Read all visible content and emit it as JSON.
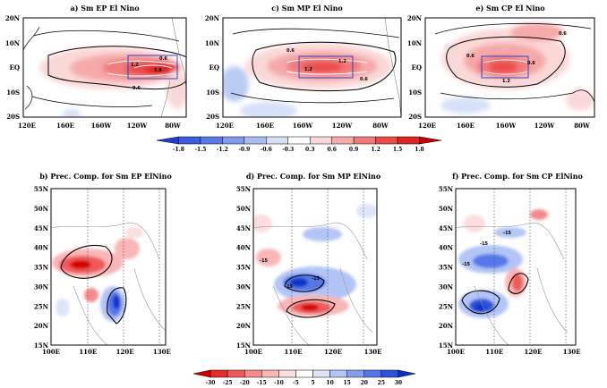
{
  "chart_data": [
    {
      "type": "heatmap",
      "title": "a) Sm EP El Nino",
      "x_ticks": [
        "120E",
        "160E",
        "160W",
        "120W",
        "80W"
      ],
      "y_ticks": [
        "20N",
        "10N",
        "EQ",
        "10S",
        "20S"
      ],
      "contour_labels": [
        "0.6",
        "1.2",
        "1.8",
        "0.6"
      ],
      "box": {
        "lon": [
          150,
          90
        ],
        "lat": [
          5,
          -5
        ]
      }
    },
    {
      "type": "heatmap",
      "title": "c) Sm MP El Nino",
      "x_ticks": [
        "120E",
        "160E",
        "160W",
        "120W",
        "80W"
      ],
      "y_ticks": [
        "20N",
        "10N",
        "EQ",
        "10S",
        "20S"
      ],
      "contour_labels": [
        "0.6",
        "1.2",
        "1.2",
        "0.6"
      ],
      "box": {
        "lon": [
          160,
          120
        ],
        "lat": [
          5,
          -5
        ]
      }
    },
    {
      "type": "heatmap",
      "title": "e) Sm CP El Nino",
      "x_ticks": [
        "120E",
        "160E",
        "160W",
        "120W",
        "80W"
      ],
      "y_ticks": [
        "20N",
        "10N",
        "EQ",
        "10S",
        "20S"
      ],
      "contour_labels": [
        "0.6",
        "0.6",
        "1.2",
        "0.6"
      ],
      "box": {
        "lon": [
          170,
          140
        ],
        "lat": [
          5,
          -5
        ]
      }
    },
    {
      "type": "heatmap",
      "title": "b) Prec. Comp. for Sm EP ElNino",
      "x_ticks": [
        "100E",
        "110E",
        "120E",
        "130E"
      ],
      "y_ticks": [
        "55N",
        "50N",
        "45N",
        "40N",
        "35N",
        "30N",
        "25N",
        "20N",
        "15N"
      ],
      "contour_labels": []
    },
    {
      "type": "heatmap",
      "title": "d) Prec. Comp. for Sm MP ElNino",
      "x_ticks": [
        "100E",
        "110E",
        "120E",
        "130E"
      ],
      "y_ticks": [
        "55N",
        "50N",
        "45N",
        "40N",
        "35N",
        "30N",
        "25N",
        "20N",
        "15N"
      ],
      "contour_labels": [
        "-15",
        "-15",
        "-15"
      ]
    },
    {
      "type": "heatmap",
      "title": "f) Prec. Comp. for Sm CP ElNino",
      "x_ticks": [
        "100E",
        "110E",
        "120E",
        "130E"
      ],
      "y_ticks": [
        "55N",
        "50N",
        "45N",
        "40N",
        "35N",
        "30N",
        "25N",
        "20N",
        "15N"
      ],
      "contour_labels": [
        "-15",
        "-15",
        "-15"
      ]
    }
  ],
  "sst_colorbar": {
    "labels": [
      "-1.8",
      "-1.5",
      "-1.2",
      "-0.9",
      "-0.6",
      "-0.3",
      "0.3",
      "0.6",
      "0.9",
      "1.2",
      "1.5",
      "1.8"
    ],
    "colors": [
      "#1f3fd4",
      "#3a5ce0",
      "#5a7ae8",
      "#7f9bee",
      "#a9bdf3",
      "#d6e0f8",
      "#ffffff",
      "#fbd8d8",
      "#f6a9a9",
      "#f17a7a",
      "#ea4b4b",
      "#e02222",
      "#cc0000"
    ]
  },
  "prec_colorbar": {
    "labels": [
      "-30",
      "-25",
      "-20",
      "-15",
      "-10",
      "-5",
      "5",
      "10",
      "15",
      "20",
      "25",
      "30"
    ],
    "colors": [
      "#d60000",
      "#e52b2b",
      "#ee5a5a",
      "#f58a8a",
      "#f9b6b6",
      "#fcdede",
      "#ffffff",
      "#dde5fb",
      "#b3c5f6",
      "#859ff0",
      "#5578e6",
      "#2c52da",
      "#0b31cc"
    ]
  }
}
